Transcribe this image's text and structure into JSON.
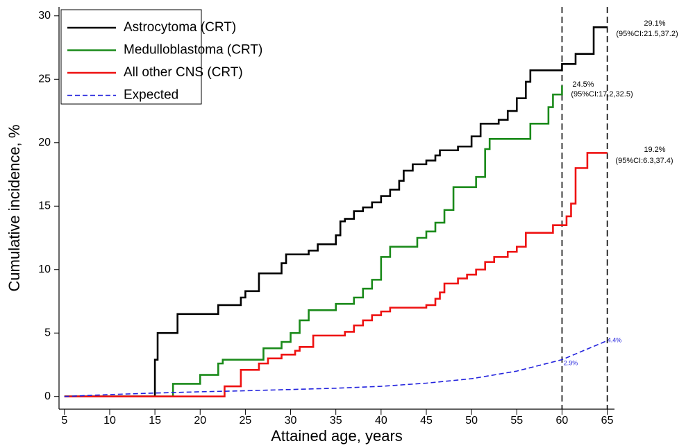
{
  "chart_data": {
    "type": "line",
    "x_label": "Attained age, years",
    "y_label": "Cumulative incidence, %",
    "xlim": [
      4.4,
      65.8
    ],
    "ylim": [
      -1,
      30.7
    ],
    "xticks": [
      5,
      10,
      15,
      20,
      25,
      30,
      35,
      40,
      45,
      50,
      55,
      60,
      65
    ],
    "yticks": [
      0,
      5,
      10,
      15,
      20,
      25,
      30
    ],
    "vlines": [
      60,
      65
    ],
    "legend": "upper left",
    "series": [
      {
        "name": "Astrocytoma (CRT)",
        "color": "#000000",
        "drawstyle": "steps-post",
        "dashed": false,
        "x": [
          5,
          15,
          15.3,
          17.5,
          22,
          24.5,
          25,
          26.5,
          29,
          29.5,
          32,
          33,
          35,
          35.5,
          36,
          37,
          38,
          39,
          40,
          41,
          42,
          42.5,
          43.5,
          45,
          46,
          46.5,
          48.5,
          50,
          51,
          53,
          54,
          55,
          56,
          56.5,
          60,
          61.5,
          63.5,
          65
        ],
        "values": [
          0,
          2.9,
          5.0,
          6.5,
          7.2,
          7.8,
          8.3,
          9.7,
          10.5,
          11.2,
          11.5,
          12.0,
          12.7,
          13.8,
          14.0,
          14.6,
          14.9,
          15.3,
          15.8,
          16.3,
          17.0,
          17.8,
          18.3,
          18.6,
          19.0,
          19.4,
          19.7,
          20.5,
          21.5,
          21.8,
          22.5,
          23.5,
          24.8,
          25.7,
          26.2,
          27.0,
          29.1,
          29.1
        ]
      },
      {
        "name": "Medulloblastoma (CRT)",
        "color": "#1a8a1a",
        "drawstyle": "steps-post",
        "dashed": false,
        "x": [
          5,
          17,
          20,
          22,
          22.5,
          27,
          29,
          30,
          31,
          32,
          35,
          37,
          38,
          39,
          40,
          41,
          44,
          45,
          46,
          47,
          48,
          50.5,
          51.5,
          52,
          56.5,
          58.5,
          59,
          60
        ],
        "values": [
          0,
          1.0,
          1.7,
          2.6,
          2.9,
          3.8,
          4.3,
          5.0,
          6.0,
          6.8,
          7.3,
          7.8,
          8.5,
          9.2,
          11.0,
          11.8,
          12.5,
          13.0,
          13.7,
          14.7,
          16.5,
          17.3,
          19.5,
          20.3,
          21.5,
          22.8,
          23.8,
          24.5
        ]
      },
      {
        "name": "All other CNS (CRT)",
        "color": "#ee1111",
        "drawstyle": "steps-post",
        "dashed": false,
        "x": [
          5,
          22.7,
          24.5,
          26.5,
          27.5,
          29,
          30.5,
          31,
          32.5,
          36,
          37,
          38,
          39,
          40,
          41,
          45,
          46,
          46.5,
          47,
          48.5,
          49.5,
          50.5,
          51.5,
          52.5,
          54,
          55,
          56,
          59,
          60.5,
          61,
          61.5,
          62.8,
          65
        ],
        "values": [
          0,
          0.8,
          2.1,
          2.6,
          3.0,
          3.3,
          3.6,
          3.9,
          4.8,
          5.1,
          5.6,
          6.0,
          6.4,
          6.7,
          7.0,
          7.2,
          7.7,
          8.2,
          8.9,
          9.3,
          9.6,
          10.0,
          10.6,
          11.0,
          11.4,
          11.8,
          12.9,
          13.5,
          14.2,
          15.2,
          18.0,
          19.2,
          19.2
        ]
      },
      {
        "name": "Expected",
        "color": "#2222dd",
        "drawstyle": "default",
        "dashed": true,
        "x": [
          5,
          10,
          15,
          20,
          25,
          30,
          35,
          40,
          45,
          50,
          55,
          60,
          65
        ],
        "values": [
          0,
          0.15,
          0.27,
          0.37,
          0.45,
          0.55,
          0.65,
          0.8,
          1.05,
          1.4,
          2.0,
          2.9,
          4.4
        ]
      }
    ],
    "annotations": [
      "29.1%",
      "(95%CI:21.5,37.2)",
      "24.5%",
      "(95%CI:17.2,32.5)",
      "19.2%",
      "(95%CI:6.3,37.4)",
      "2.9%",
      "4.4%"
    ]
  }
}
